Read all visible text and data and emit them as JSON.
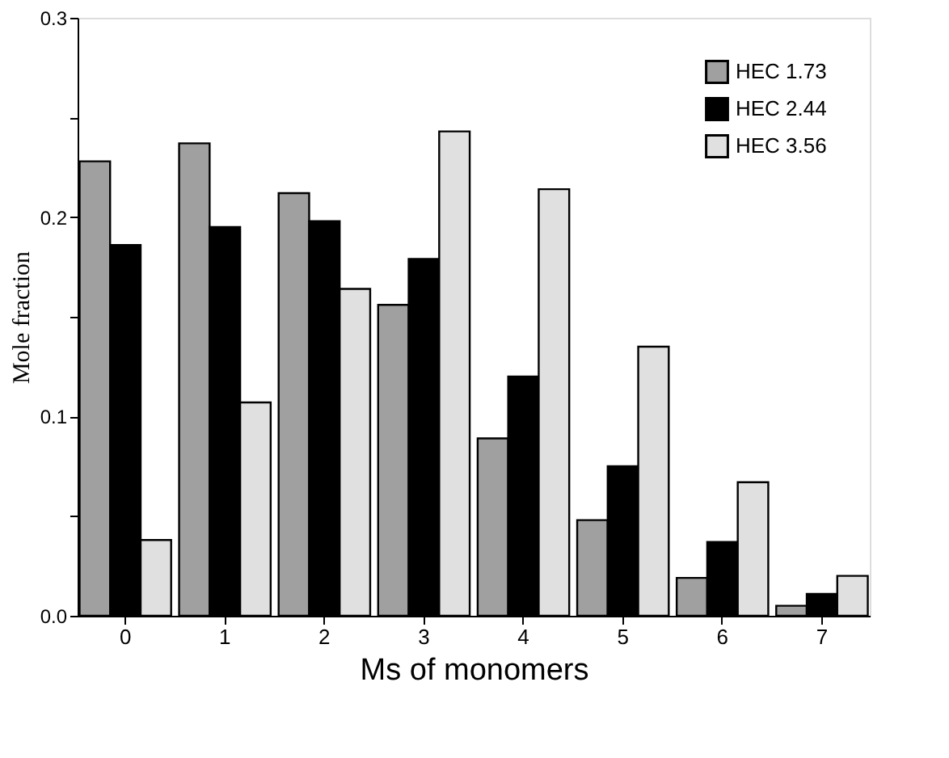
{
  "chart_data": {
    "type": "bar",
    "xlabel": "Ms of monomers",
    "ylabel": "Mole fraction",
    "categories": [
      "0",
      "1",
      "2",
      "3",
      "4",
      "5",
      "6",
      "7"
    ],
    "series": [
      {
        "name": "HEC 1.73",
        "color": "#a0a0a0",
        "values": [
          0.228,
          0.237,
          0.212,
          0.156,
          0.089,
          0.048,
          0.019,
          0.005
        ]
      },
      {
        "name": "HEC 2.44",
        "color": "#000000",
        "values": [
          0.186,
          0.195,
          0.198,
          0.179,
          0.12,
          0.075,
          0.037,
          0.011
        ]
      },
      {
        "name": "HEC 3.56",
        "color": "#e0e0e0",
        "values": [
          0.038,
          0.107,
          0.164,
          0.243,
          0.214,
          0.135,
          0.067,
          0.02
        ]
      }
    ],
    "ylim": [
      0,
      0.3
    ],
    "yticks": [
      {
        "value": 0,
        "label": "0.0"
      },
      {
        "value": 0.05,
        "label": null
      },
      {
        "value": 0.1,
        "label": "0.1"
      },
      {
        "value": 0.15,
        "label": null
      },
      {
        "value": 0.2,
        "label": "0.2"
      },
      {
        "value": 0.25,
        "label": null
      },
      {
        "value": 0.3,
        "label": "0.3"
      }
    ],
    "grid": false,
    "legend": "top right"
  }
}
